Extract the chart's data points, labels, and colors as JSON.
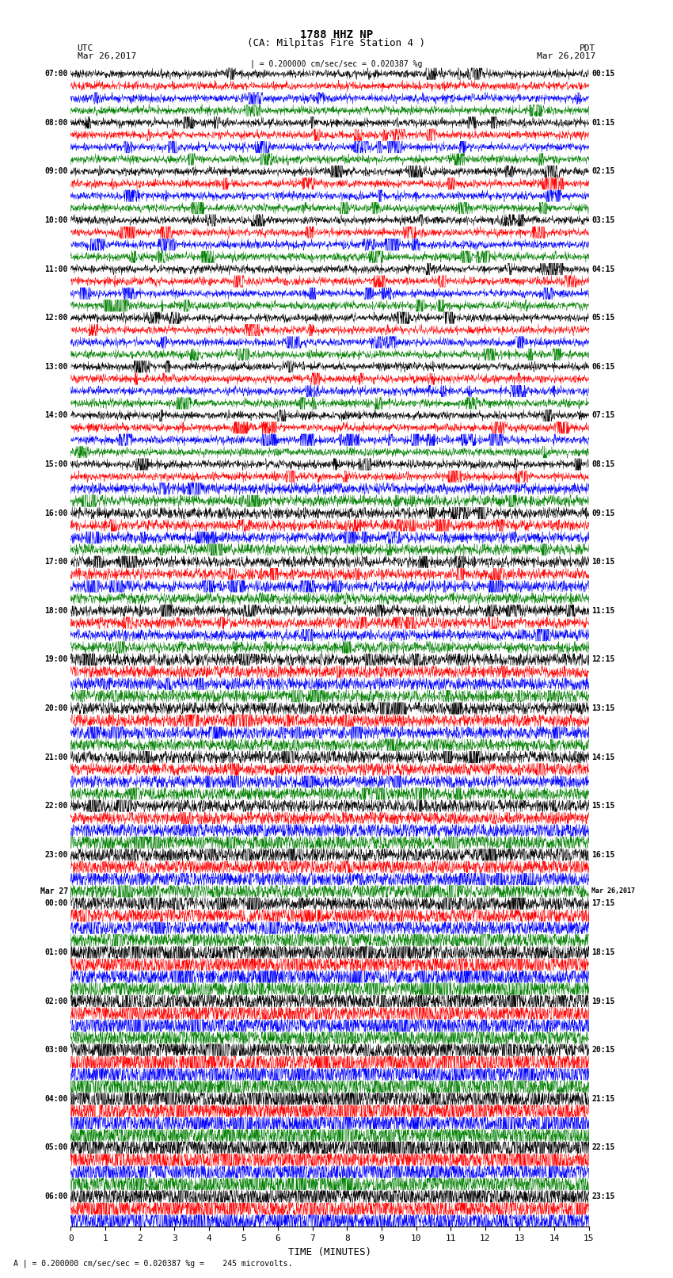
{
  "title_line1": "1788 HHZ NP",
  "title_line2": "(CA: Milpitas Fire Station 4 )",
  "utc_label": "UTC",
  "pdt_label": "PDT",
  "date_left": "Mar 26,2017",
  "date_right": "Mar 26,2017",
  "scale_text": "| = 0.200000 cm/sec/sec = 0.020387 %g",
  "bottom_text": "A | = 0.200000 cm/sec/sec = 0.020387 %g =    245 microvolts.",
  "xlabel": "TIME (MINUTES)",
  "xmin": 0,
  "xmax": 15,
  "xticks": [
    0,
    1,
    2,
    3,
    4,
    5,
    6,
    7,
    8,
    9,
    10,
    11,
    12,
    13,
    14,
    15
  ],
  "colors": [
    "black",
    "red",
    "blue",
    "green"
  ],
  "background_color": "#ffffff",
  "trace_linewidth": 0.35,
  "left_times": [
    "07:00",
    "",
    "",
    "",
    "08:00",
    "",
    "",
    "",
    "09:00",
    "",
    "",
    "",
    "10:00",
    "",
    "",
    "",
    "11:00",
    "",
    "",
    "",
    "12:00",
    "",
    "",
    "",
    "13:00",
    "",
    "",
    "",
    "14:00",
    "",
    "",
    "",
    "15:00",
    "",
    "",
    "",
    "16:00",
    "",
    "",
    "",
    "17:00",
    "",
    "",
    "",
    "18:00",
    "",
    "",
    "",
    "19:00",
    "",
    "",
    "",
    "20:00",
    "",
    "",
    "",
    "21:00",
    "",
    "",
    "",
    "22:00",
    "",
    "",
    "",
    "23:00",
    "",
    "",
    "Mar 27",
    "00:00",
    "",
    "",
    "",
    "01:00",
    "",
    "",
    "",
    "02:00",
    "",
    "",
    "",
    "03:00",
    "",
    "",
    "",
    "04:00",
    "",
    "",
    "",
    "05:00",
    "",
    "",
    "",
    "06:00",
    "",
    ""
  ],
  "right_times": [
    "00:15",
    "",
    "",
    "",
    "01:15",
    "",
    "",
    "",
    "02:15",
    "",
    "",
    "",
    "03:15",
    "",
    "",
    "",
    "04:15",
    "",
    "",
    "",
    "05:15",
    "",
    "",
    "",
    "06:15",
    "",
    "",
    "",
    "07:15",
    "",
    "",
    "",
    "08:15",
    "",
    "",
    "",
    "09:15",
    "",
    "",
    "",
    "10:15",
    "",
    "",
    "",
    "11:15",
    "",
    "",
    "",
    "12:15",
    "",
    "",
    "",
    "13:15",
    "",
    "",
    "",
    "14:15",
    "",
    "",
    "",
    "15:15",
    "",
    "",
    "",
    "16:15",
    "",
    "",
    "Mar 26,2017",
    "17:15",
    "",
    "",
    "",
    "18:15",
    "",
    "",
    "",
    "19:15",
    "",
    "",
    "",
    "20:15",
    "",
    "",
    "",
    "21:15",
    "",
    "",
    "",
    "22:15",
    "",
    "",
    "",
    "23:15",
    "",
    ""
  ]
}
